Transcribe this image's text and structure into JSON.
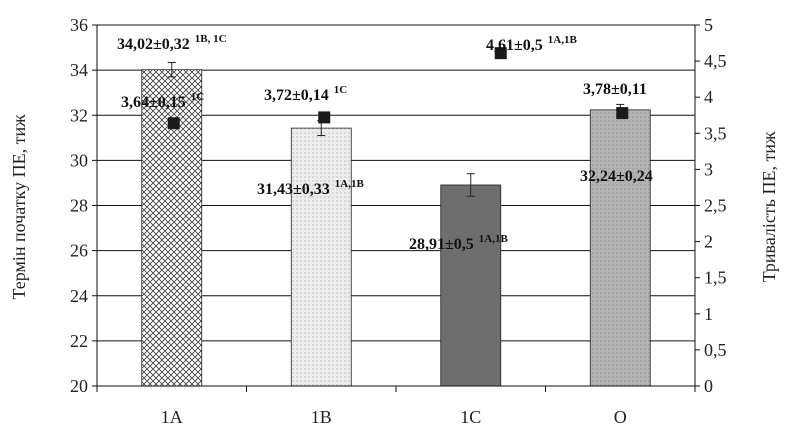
{
  "chart_data": {
    "type": "bar",
    "categories": [
      "1A",
      "1B",
      "1C",
      "O"
    ],
    "y_left": {
      "label": "Термін початку ПЕ, тиж",
      "lim": [
        20,
        36
      ],
      "ticks": [
        20,
        22,
        24,
        26,
        28,
        30,
        32,
        34,
        36
      ]
    },
    "y_right": {
      "label": "Тривалість ПЕ, тиж",
      "lim": [
        0,
        5
      ],
      "ticks": [
        "0",
        "0,5",
        "1",
        "1,5",
        "2",
        "2,5",
        "3",
        "3,5",
        "4",
        "4,5",
        "5"
      ]
    },
    "grid": true,
    "series": [
      {
        "axis": "left",
        "values": [
          34.02,
          31.43,
          28.91,
          32.24
        ],
        "errors": [
          0.32,
          0.33,
          0.5,
          0.24
        ],
        "patterns": [
          "crosshatch",
          "light",
          "dark",
          "gray"
        ],
        "labels": [
          {
            "text": "34,02±0,32",
            "sup": "1B, 1C"
          },
          {
            "text": "31,43±0,33",
            "sup": "1A,1B"
          },
          {
            "text": "28,91±0,5",
            "sup": "1A,1B"
          },
          {
            "text": "32,24±0,24",
            "sup": ""
          }
        ]
      },
      {
        "axis": "right",
        "marker": "square",
        "values": [
          3.64,
          3.72,
          4.61,
          3.78
        ],
        "errors": [
          0.15,
          0.14,
          0.5,
          0.11
        ],
        "labels": [
          {
            "text": "3,64±0,15",
            "sup": "1C"
          },
          {
            "text": "3,72±0,14",
            "sup": "1C"
          },
          {
            "text": "4,61±0,5",
            "sup": "1A,1B"
          },
          {
            "text": "3,78±0,11",
            "sup": ""
          }
        ]
      }
    ]
  }
}
